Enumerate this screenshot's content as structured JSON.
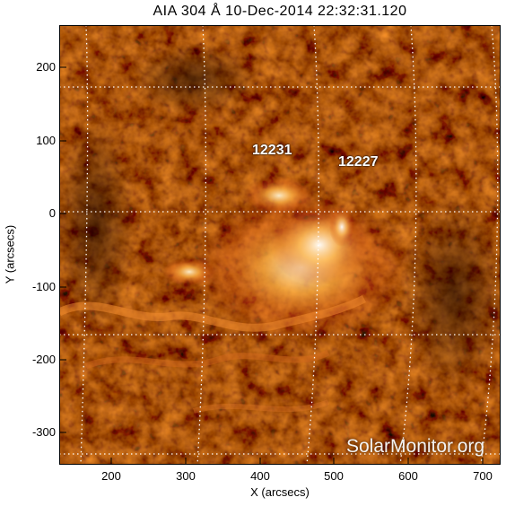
{
  "title": "AIA 304 Å 10-Dec-2014 22:32:31.120",
  "axes": {
    "xlabel": "X (arcsecs)",
    "ylabel": "Y (arcsecs)",
    "xticks": [
      "200",
      "300",
      "400",
      "500",
      "600",
      "700"
    ],
    "yticks": [
      "200",
      "100",
      "0",
      "-100",
      "-200",
      "-300"
    ]
  },
  "active_regions": [
    {
      "id": "12231"
    },
    {
      "id": "12227"
    }
  ],
  "watermark": "SolarMonitor.org",
  "colors": {
    "background": "#ffffff",
    "image_dark": "#1a0200",
    "image_mid": "#a32a05",
    "image_bright": "#ffd28a",
    "grid": "#ffffff"
  }
}
